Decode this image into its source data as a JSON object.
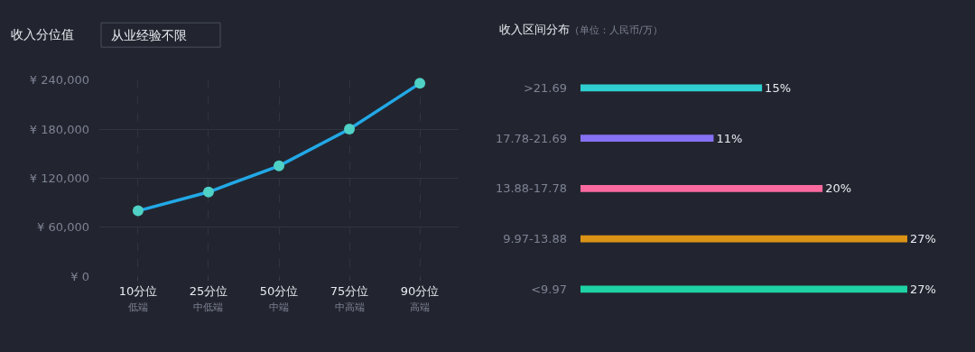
{
  "chart_data": [
    {
      "type": "line",
      "title": "收入分位值",
      "annotations": [
        "从业经验不限",
        "低端",
        "中低端",
        "中端",
        "中高端",
        "高端"
      ],
      "categories": [
        "10分位",
        "25分位",
        "50分位",
        "75分位",
        "90分位"
      ],
      "series": [
        {
          "color": "#22a8e6",
          "values": [
            80000,
            103000,
            135000,
            180000,
            236000
          ]
        }
      ],
      "ylim": [
        0,
        240000
      ],
      "yticks": [
        {
          "value": 0,
          "label": "¥ 0"
        },
        {
          "value": 60000,
          "label": "¥ 60,000"
        },
        {
          "value": 120000,
          "label": "¥ 120,000"
        },
        {
          "value": 180000,
          "label": "¥ 180,000"
        },
        {
          "value": 240000,
          "label": "¥ 240,000"
        }
      ],
      "grid": true,
      "marker": "circle",
      "line_style": "solid"
    },
    {
      "type": "bar",
      "orientation": "horizontal",
      "title": "收入区间分布",
      "subtitle": "（单位：人民币/万）",
      "categories": [
        ">21.69",
        "17.78-21.69",
        "13.88-17.78",
        "9.97-13.88",
        "<9.97"
      ],
      "values": [
        15,
        11,
        20,
        27,
        27
      ],
      "colors": [
        "#2fcfd0",
        "#8670f4",
        "#fb6a9f",
        "#db9316",
        "#1fd2a6"
      ],
      "tick_labels": "y",
      "value_labels": [
        "15%",
        "11%",
        "20%",
        "27%",
        "27%"
      ]
    }
  ]
}
